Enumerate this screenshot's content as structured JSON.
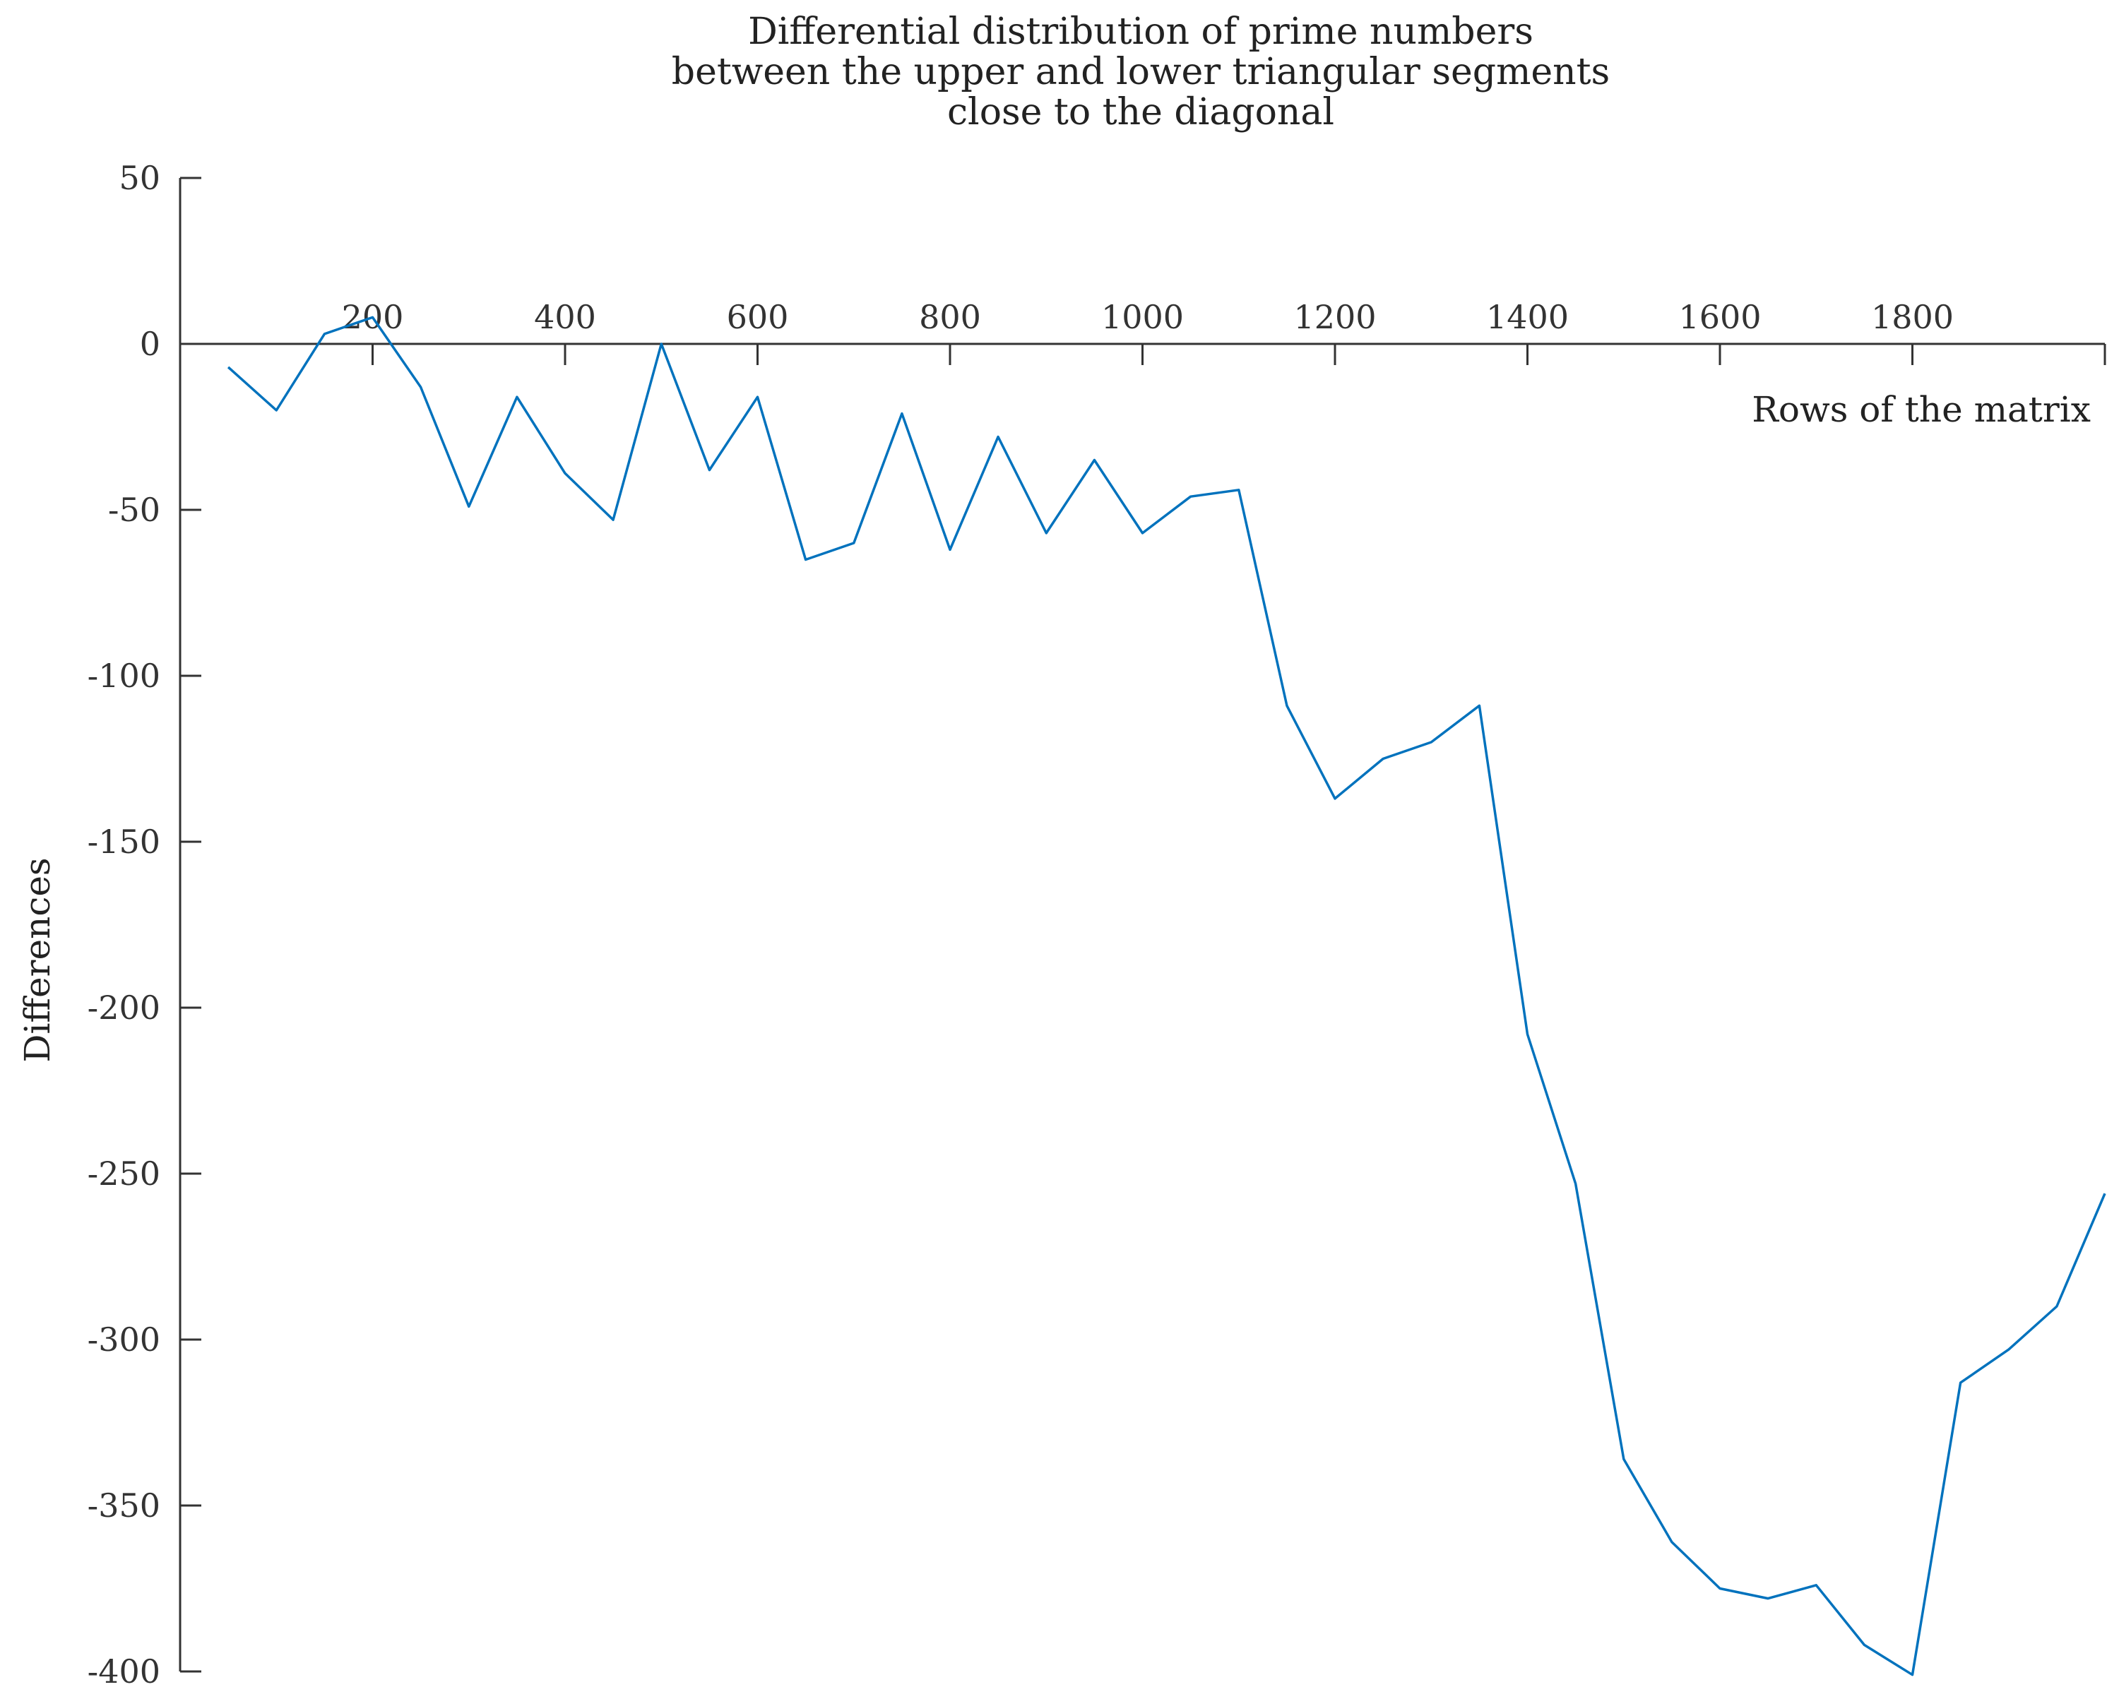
{
  "chart_data": {
    "type": "line",
    "title": [
      "Differential distribution of prime numbers",
      "between the upper and lower triangular segments",
      "close to the diagonal"
    ],
    "xlabel": "Rows of the matrix",
    "ylabel": "Differences",
    "xlim": [
      0,
      2000
    ],
    "ylim": [
      -400,
      50
    ],
    "x_ticks": [
      200,
      400,
      600,
      800,
      1000,
      1200,
      1400,
      1600,
      1800
    ],
    "x_tick_labels": [
      "200",
      "400",
      "600",
      "800",
      "1000",
      "1200",
      "1400",
      "1600",
      "1800"
    ],
    "y_ticks": [
      50,
      0,
      -50,
      -100,
      -150,
      -200,
      -250,
      -300,
      -350,
      -400
    ],
    "y_tick_labels": [
      "50",
      "0",
      "-50",
      "-100",
      "-150",
      "-200",
      "-250",
      "-300",
      "-350",
      "-400"
    ],
    "x_axis_position": "y = 0",
    "grid": false,
    "legend": "none",
    "series": [
      {
        "color": "#0072BD",
        "x": [
          50,
          100,
          150,
          200,
          250,
          300,
          350,
          400,
          450,
          500,
          550,
          600,
          650,
          700,
          750,
          800,
          850,
          900,
          950,
          1000,
          1050,
          1100,
          1150,
          1200,
          1250,
          1300,
          1350,
          1400,
          1450,
          1500,
          1550,
          1600,
          1650,
          1700,
          1750,
          1800,
          1850,
          1900,
          1950,
          2000
        ],
        "values": [
          -7,
          -20,
          3,
          8,
          -13,
          -49,
          -16,
          -39,
          -53,
          0,
          -38,
          -16,
          -65,
          -60,
          -21,
          -62,
          -28,
          -57,
          -35,
          -57,
          -46,
          -44,
          -109,
          -137,
          -125,
          -120,
          -109,
          -208,
          -253,
          -336,
          -361,
          -375,
          -378,
          -374,
          -392,
          -401,
          -313,
          -303,
          -290,
          -256
        ]
      }
    ]
  }
}
